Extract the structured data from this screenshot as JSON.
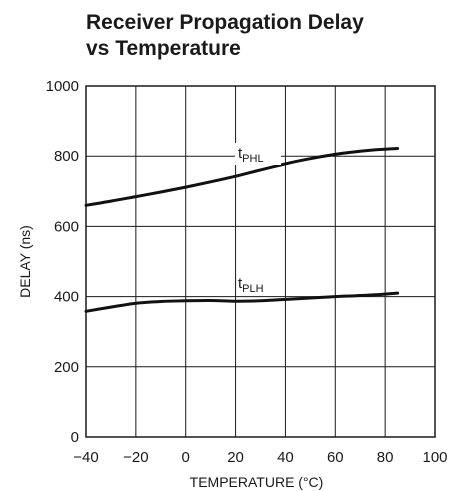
{
  "chart_data": {
    "type": "line",
    "title_line1": "Receiver Propagation Delay",
    "title_line2": "vs Temperature",
    "xlabel": "TEMPERATURE (°C)",
    "ylabel": "DELAY (ns)",
    "xlim": [
      -40,
      100
    ],
    "ylim": [
      0,
      1000
    ],
    "xticks": [
      -40,
      -20,
      0,
      20,
      40,
      60,
      80,
      100
    ],
    "xtick_labels": [
      "−40",
      "−20",
      "0",
      "20",
      "40",
      "60",
      "80",
      "100"
    ],
    "yticks": [
      0,
      200,
      400,
      600,
      800,
      1000
    ],
    "ytick_labels": [
      "0",
      "200",
      "400",
      "600",
      "800",
      "1000"
    ],
    "grid": true,
    "series": [
      {
        "label_base": "t",
        "label_sub": "PHL",
        "x": [
          -40,
          -30,
          -20,
          -10,
          0,
          10,
          20,
          30,
          40,
          50,
          60,
          70,
          80,
          85
        ],
        "y": [
          660,
          672,
          685,
          698,
          712,
          727,
          743,
          761,
          778,
          793,
          805,
          814,
          820,
          822
        ]
      },
      {
        "label_base": "t",
        "label_sub": "PLH",
        "x": [
          -40,
          -30,
          -20,
          -10,
          0,
          10,
          20,
          30,
          40,
          50,
          60,
          70,
          80,
          85
        ],
        "y": [
          358,
          370,
          381,
          386,
          388,
          389,
          387,
          388,
          392,
          396,
          400,
          403,
          407,
          410
        ]
      }
    ],
    "line_color": "#111111",
    "grid_color": "#1a1a1a"
  }
}
